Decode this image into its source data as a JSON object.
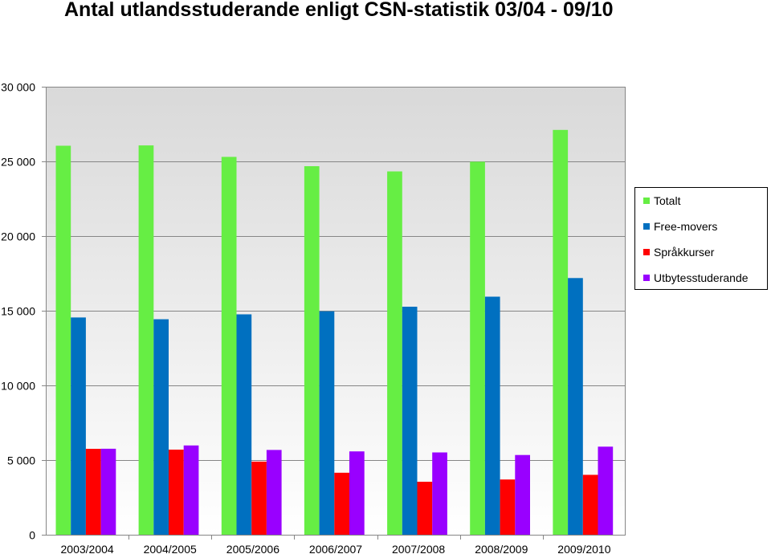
{
  "chart_data": {
    "type": "bar",
    "title": "Antal utlandsstuderande enligt CSN-statistik 03/04 - 09/10",
    "xlabel": "",
    "ylabel": "",
    "ylim": [
      0,
      30000
    ],
    "yticks": [
      0,
      5000,
      10000,
      15000,
      20000,
      25000,
      30000
    ],
    "ytick_labels": [
      "0",
      "5 000",
      "10 000",
      "15 000",
      "20 000",
      "25 000",
      "30 000"
    ],
    "grid": true,
    "legend_position": "right",
    "categories": [
      "2003/2004",
      "2004/2005",
      "2005/2006",
      "2006/2007",
      "2007/2008",
      "2008/2009",
      "2009/2010"
    ],
    "series": [
      {
        "name": "Totalt",
        "color": "#66ee44",
        "values": [
          26050,
          26070,
          25300,
          24680,
          24330,
          24980,
          27110
        ]
      },
      {
        "name": "Free-movers",
        "color": "#0070c0",
        "values": [
          14550,
          14430,
          14760,
          14960,
          15270,
          15940,
          17190
        ]
      },
      {
        "name": "Språkkurser",
        "color": "#ff0000",
        "values": [
          5750,
          5700,
          4900,
          4150,
          3550,
          3700,
          4010
        ]
      },
      {
        "name": "Utbytesstuderande",
        "color": "#9900ff",
        "values": [
          5760,
          5980,
          5680,
          5580,
          5510,
          5340,
          5900
        ]
      }
    ]
  }
}
